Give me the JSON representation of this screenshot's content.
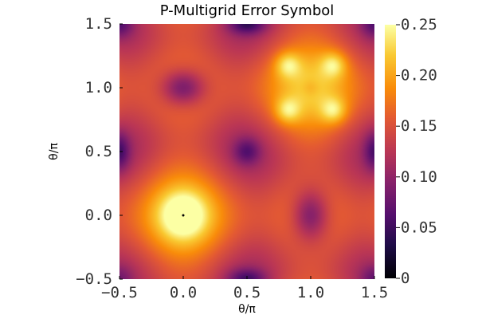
{
  "chart_data": {
    "type": "heatmap",
    "title": "P-Multigrid Error Symbol",
    "xlabel": "θ/π",
    "ylabel": "θ/π",
    "xlim": [
      -0.5,
      1.5
    ],
    "ylim": [
      -0.5,
      1.5
    ],
    "x_ticks": [
      -0.5,
      0.0,
      0.5,
      1.0,
      1.5
    ],
    "y_ticks": [
      -0.5,
      0.0,
      0.5,
      1.0,
      1.5
    ],
    "x_tick_labels": [
      "−0.5",
      "0.0",
      "0.5",
      "1.0",
      "1.5"
    ],
    "y_tick_labels": [
      "−0.5",
      "0.0",
      "0.5",
      "1.0",
      "1.5"
    ],
    "colorbar": {
      "range": [
        0,
        0.25
      ],
      "ticks": [
        0,
        0.05,
        0.1,
        0.15,
        0.2,
        0.25
      ],
      "tick_labels": [
        "0",
        "0.05",
        "0.10",
        "0.15",
        "0.20",
        "0.25"
      ],
      "colormap": "inferno"
    },
    "grid": false,
    "legend": "none",
    "features": [
      {
        "x": 0.0,
        "y": 0.0,
        "value": 0.25
      },
      {
        "x": 0.0,
        "y": 1.0,
        "value": 0.09
      },
      {
        "x": 1.0,
        "y": 0.0,
        "value": 0.09
      },
      {
        "x": 1.0,
        "y": 1.0,
        "value": 0.18
      },
      {
        "x": 0.85,
        "y": 1.15,
        "value": 0.24
      },
      {
        "x": 1.15,
        "y": 1.15,
        "value": 0.24
      },
      {
        "x": 0.85,
        "y": 0.85,
        "value": 0.24
      },
      {
        "x": 1.15,
        "y": 0.85,
        "value": 0.24
      },
      {
        "x": 0.5,
        "y": 0.5,
        "value": 0.1
      },
      {
        "x": 0.5,
        "y": 1.5,
        "value": 0.08
      },
      {
        "x": -0.5,
        "y": 0.5,
        "value": 0.09
      },
      {
        "x": 1.5,
        "y": 0.5,
        "value": 0.1
      }
    ]
  }
}
